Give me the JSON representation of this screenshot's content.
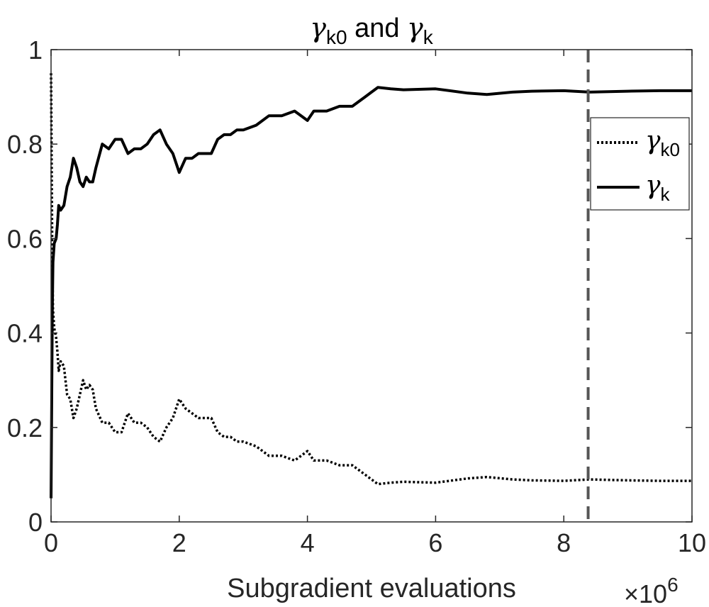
{
  "chart_data": {
    "type": "line",
    "title": {
      "main_1": "γ",
      "sub_1": "k0",
      "mid": " and ",
      "main_2": "γ",
      "sub_2": "k"
    },
    "xlabel": "Subgradient evaluations",
    "x_exponent": {
      "base": "×10",
      "power": "6"
    },
    "ylabel": "",
    "xlim": [
      0,
      10
    ],
    "ylim": [
      0,
      1
    ],
    "x_ticks": [
      "0",
      "2",
      "4",
      "6",
      "8",
      "10"
    ],
    "y_ticks": [
      "0",
      "0.2",
      "0.4",
      "0.6",
      "0.8",
      "1"
    ],
    "grid": false,
    "legend_position": "right",
    "vertical_marker": {
      "x": 8.38,
      "style": "dashed",
      "color": "#555555"
    },
    "series": [
      {
        "name": "γk0",
        "name_main": "γ",
        "name_sub": "k0",
        "style": "dotted",
        "color": "#000000",
        "x": [
          0.0,
          0.01,
          0.02,
          0.03,
          0.05,
          0.08,
          0.1,
          0.12,
          0.15,
          0.2,
          0.25,
          0.3,
          0.35,
          0.4,
          0.45,
          0.5,
          0.55,
          0.6,
          0.65,
          0.7,
          0.8,
          0.9,
          1.0,
          1.1,
          1.2,
          1.3,
          1.4,
          1.5,
          1.6,
          1.7,
          1.8,
          1.9,
          2.0,
          2.1,
          2.2,
          2.3,
          2.4,
          2.5,
          2.6,
          2.7,
          2.8,
          2.9,
          3.0,
          3.2,
          3.4,
          3.6,
          3.8,
          3.9,
          4.0,
          4.1,
          4.3,
          4.5,
          4.7,
          4.9,
          5.0,
          5.1,
          5.3,
          5.5,
          6.0,
          6.5,
          6.8,
          7.2,
          7.5,
          8.0,
          8.4,
          9.0,
          9.5,
          10.0
        ],
        "y": [
          0.95,
          0.75,
          0.55,
          0.45,
          0.41,
          0.39,
          0.36,
          0.32,
          0.34,
          0.33,
          0.27,
          0.26,
          0.22,
          0.24,
          0.27,
          0.3,
          0.28,
          0.29,
          0.28,
          0.24,
          0.21,
          0.21,
          0.19,
          0.19,
          0.23,
          0.21,
          0.21,
          0.2,
          0.18,
          0.17,
          0.2,
          0.22,
          0.26,
          0.24,
          0.23,
          0.22,
          0.22,
          0.22,
          0.19,
          0.18,
          0.18,
          0.17,
          0.17,
          0.16,
          0.14,
          0.14,
          0.13,
          0.14,
          0.15,
          0.13,
          0.13,
          0.12,
          0.12,
          0.1,
          0.09,
          0.08,
          0.083,
          0.085,
          0.083,
          0.092,
          0.095,
          0.09,
          0.088,
          0.087,
          0.09,
          0.088,
          0.087,
          0.087
        ]
      },
      {
        "name": "γk",
        "name_main": "γ",
        "name_sub": "k",
        "style": "solid",
        "color": "#000000",
        "x": [
          0.0,
          0.01,
          0.02,
          0.03,
          0.05,
          0.08,
          0.1,
          0.12,
          0.15,
          0.2,
          0.25,
          0.3,
          0.35,
          0.4,
          0.45,
          0.5,
          0.55,
          0.6,
          0.65,
          0.7,
          0.8,
          0.9,
          1.0,
          1.1,
          1.2,
          1.3,
          1.4,
          1.5,
          1.6,
          1.7,
          1.8,
          1.9,
          2.0,
          2.1,
          2.2,
          2.3,
          2.4,
          2.5,
          2.6,
          2.7,
          2.8,
          2.9,
          3.0,
          3.2,
          3.4,
          3.6,
          3.8,
          3.9,
          4.0,
          4.1,
          4.3,
          4.5,
          4.7,
          4.9,
          5.0,
          5.1,
          5.3,
          5.5,
          6.0,
          6.5,
          6.8,
          7.2,
          7.5,
          8.0,
          8.4,
          9.0,
          9.5,
          10.0
        ],
        "y": [
          0.05,
          0.25,
          0.45,
          0.55,
          0.59,
          0.6,
          0.63,
          0.67,
          0.66,
          0.67,
          0.71,
          0.73,
          0.77,
          0.75,
          0.72,
          0.71,
          0.73,
          0.72,
          0.72,
          0.75,
          0.8,
          0.79,
          0.81,
          0.81,
          0.78,
          0.79,
          0.79,
          0.8,
          0.82,
          0.83,
          0.8,
          0.78,
          0.74,
          0.77,
          0.77,
          0.78,
          0.78,
          0.78,
          0.81,
          0.82,
          0.82,
          0.83,
          0.83,
          0.84,
          0.86,
          0.86,
          0.87,
          0.86,
          0.85,
          0.87,
          0.87,
          0.88,
          0.88,
          0.9,
          0.91,
          0.92,
          0.917,
          0.915,
          0.917,
          0.908,
          0.905,
          0.91,
          0.912,
          0.913,
          0.91,
          0.912,
          0.913,
          0.913
        ]
      }
    ]
  }
}
